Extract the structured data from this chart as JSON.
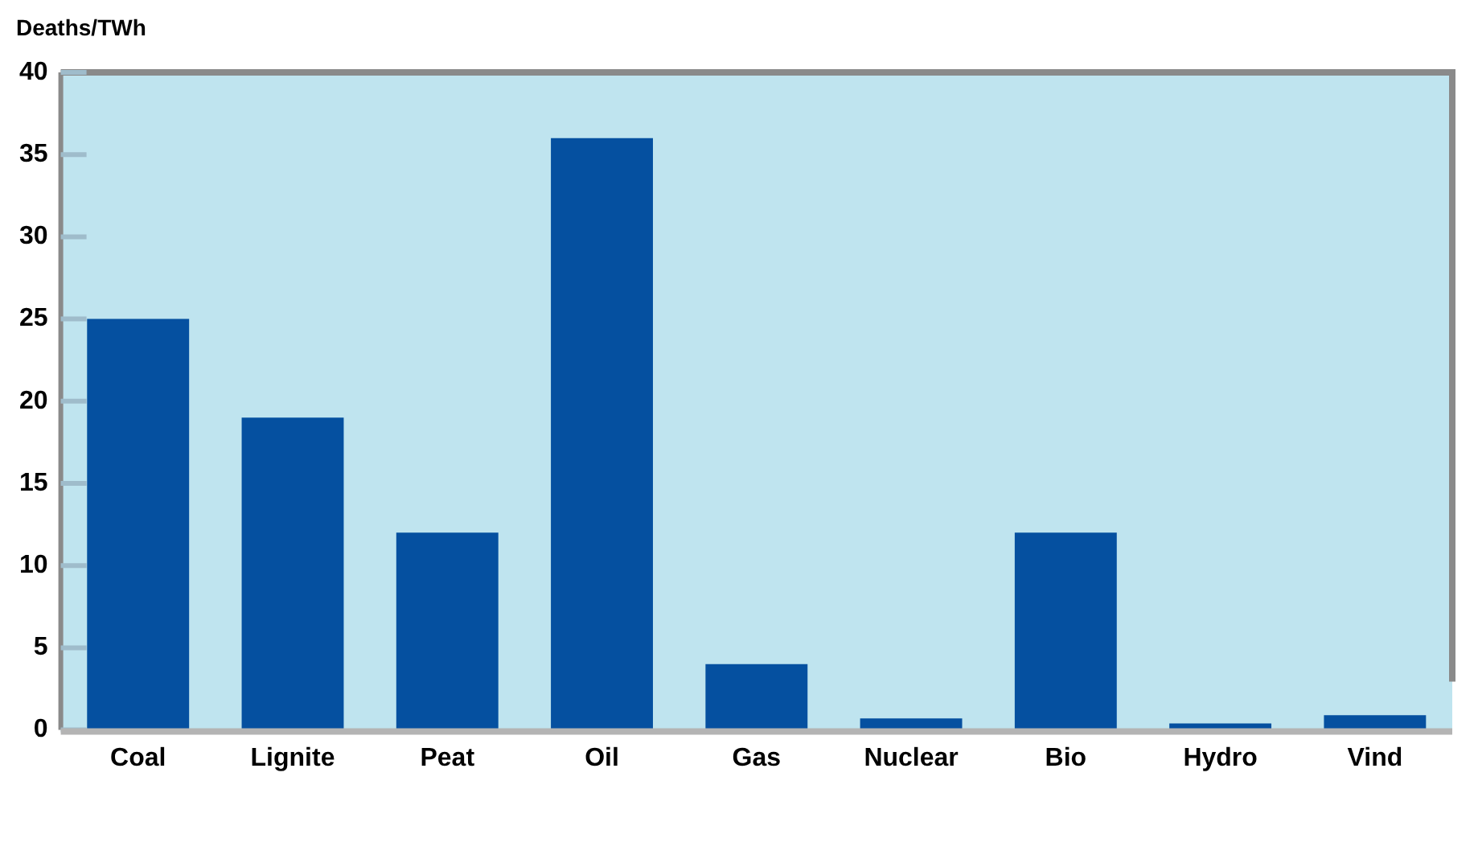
{
  "chart_data": {
    "type": "bar",
    "ylabel": "Deaths/TWh",
    "categories": [
      "Coal",
      "Lignite",
      "Peat",
      "Oil",
      "Gas",
      "Nuclear",
      "Bio",
      "Hydro",
      "Vind"
    ],
    "values": [
      25,
      19,
      12,
      36,
      4,
      0.7,
      12,
      0.4,
      0.9
    ],
    "color": "#0550a0",
    "ylim": [
      0,
      40
    ],
    "yticks": [
      0,
      5,
      10,
      15,
      20,
      25,
      30,
      35,
      40
    ],
    "grid": false,
    "legend": false
  }
}
